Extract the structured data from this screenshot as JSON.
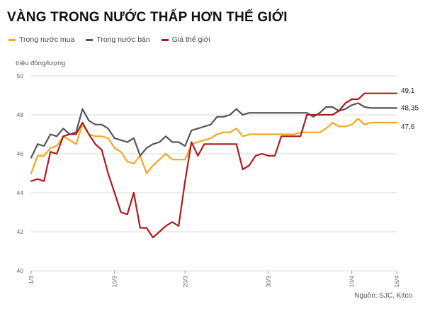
{
  "chart_data": {
    "type": "line",
    "title": "VÀNG TRONG NƯỚC THẤP HƠN THẾ GIỚI",
    "ylabel": "triệu đồng/lượng",
    "source": "Nguồn: SJC, Kitco",
    "ylim": [
      40,
      50
    ],
    "yticks": [
      "40",
      "42",
      "44",
      "46",
      "48",
      "50"
    ],
    "xlim": [
      0,
      57
    ],
    "xticks": [
      {
        "x": 0,
        "label": "1/3"
      },
      {
        "x": 13,
        "label": "10/3"
      },
      {
        "x": 24,
        "label": "20/3"
      },
      {
        "x": 37,
        "label": "30/3"
      },
      {
        "x": 50,
        "label": "10/4"
      },
      {
        "x": 57,
        "label": "16/4"
      }
    ],
    "grid": true,
    "legend": "top-left",
    "series": [
      {
        "name": "Trong nước mua",
        "color": "#f0a81e",
        "end_label": "47,6",
        "x": [
          0,
          1,
          2,
          3,
          4,
          5,
          6,
          7,
          8,
          9,
          10,
          11,
          12,
          13,
          14,
          15,
          16,
          17,
          18,
          19,
          20,
          21,
          22,
          23,
          24,
          25,
          26,
          27,
          28,
          29,
          30,
          31,
          32,
          33,
          34,
          35,
          36,
          37,
          38,
          39,
          40,
          41,
          42,
          43,
          44,
          45,
          46,
          47,
          48,
          49,
          50,
          51,
          52,
          53,
          54,
          55,
          56,
          57
        ],
        "values": [
          45.0,
          45.9,
          45.9,
          46.3,
          46.4,
          46.9,
          46.7,
          46.5,
          47.5,
          47.0,
          46.9,
          46.9,
          46.8,
          46.3,
          46.1,
          45.6,
          45.5,
          45.9,
          45.0,
          45.4,
          45.7,
          46.0,
          45.7,
          45.7,
          45.7,
          46.5,
          46.6,
          46.7,
          46.8,
          47.0,
          47.1,
          47.1,
          47.3,
          46.9,
          47.0,
          47.0,
          47.0,
          47.0,
          47.0,
          47.0,
          47.0,
          47.0,
          47.1,
          47.1,
          47.1,
          47.1,
          47.3,
          47.6,
          47.4,
          47.4,
          47.5,
          47.8,
          47.5,
          47.6,
          47.6,
          47.6,
          47.6,
          47.6
        ]
      },
      {
        "name": "Trong nước bán",
        "color": "#555555",
        "end_label": "48,35",
        "x": [
          0,
          1,
          2,
          3,
          4,
          5,
          6,
          7,
          8,
          9,
          10,
          11,
          12,
          13,
          14,
          15,
          16,
          17,
          18,
          19,
          20,
          21,
          22,
          23,
          24,
          25,
          26,
          27,
          28,
          29,
          30,
          31,
          32,
          33,
          34,
          35,
          36,
          37,
          38,
          39,
          40,
          41,
          42,
          43,
          44,
          45,
          46,
          47,
          48,
          49,
          50,
          51,
          52,
          53,
          54,
          55,
          56,
          57
        ],
        "values": [
          45.8,
          46.5,
          46.4,
          47.0,
          46.9,
          47.3,
          47.0,
          47.1,
          48.3,
          47.7,
          47.5,
          47.5,
          47.3,
          46.8,
          46.7,
          46.6,
          46.8,
          45.9,
          46.3,
          46.5,
          46.6,
          46.9,
          46.6,
          46.6,
          46.4,
          47.2,
          47.3,
          47.4,
          47.5,
          47.9,
          47.9,
          48.0,
          48.3,
          48.0,
          48.1,
          48.1,
          48.1,
          48.1,
          48.1,
          48.1,
          48.1,
          48.1,
          48.1,
          48.1,
          47.9,
          48.1,
          48.4,
          48.4,
          48.2,
          48.3,
          48.5,
          48.6,
          48.4,
          48.35,
          48.35,
          48.35,
          48.35,
          48.35
        ]
      },
      {
        "name": "Giá thế giới",
        "color": "#b01a1a",
        "end_label": "49,1",
        "x": [
          0,
          1,
          2,
          3,
          4,
          5,
          6,
          7,
          8,
          9,
          10,
          11,
          12,
          13,
          14,
          15,
          16,
          17,
          18,
          19,
          20,
          21,
          22,
          23,
          24,
          25,
          26,
          27,
          28,
          29,
          30,
          31,
          32,
          33,
          34,
          35,
          36,
          37,
          38,
          39,
          40,
          41,
          42,
          43,
          44,
          45,
          46,
          47,
          48,
          49,
          50,
          51,
          52,
          53,
          54,
          55,
          56,
          57
        ],
        "values": [
          44.6,
          44.7,
          44.6,
          46.1,
          46.0,
          46.9,
          47.0,
          47.0,
          47.6,
          47.0,
          46.5,
          46.2,
          45.0,
          44.0,
          43.0,
          42.9,
          44.0,
          42.2,
          42.2,
          41.7,
          42.0,
          42.3,
          42.5,
          42.3,
          44.6,
          46.6,
          45.9,
          46.5,
          46.5,
          46.5,
          46.5,
          46.5,
          46.5,
          45.2,
          45.4,
          45.9,
          46.0,
          45.9,
          45.9,
          46.9,
          46.9,
          46.9,
          46.9,
          48.0,
          48.0,
          48.0,
          48.0,
          48.0,
          48.2,
          48.6,
          48.8,
          48.8,
          49.1,
          49.1,
          49.1,
          49.1,
          49.1,
          49.1
        ]
      }
    ]
  }
}
